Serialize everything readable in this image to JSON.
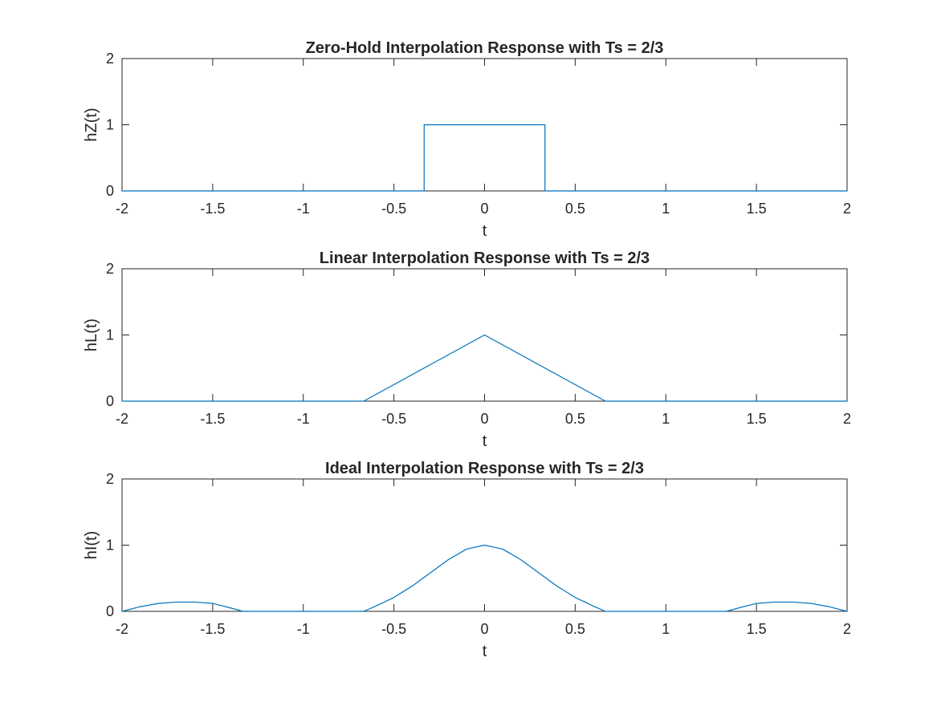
{
  "figure": {
    "background": "#ffffff",
    "axes_color": "#262626",
    "line_color": "#0072bd"
  },
  "chart_data": [
    {
      "type": "line",
      "title": "Zero-Hold Interpolation Response with Ts = 2/3",
      "xlabel": "t",
      "ylabel": "hZ(t)",
      "xlim": [
        -2,
        2
      ],
      "ylim": [
        0,
        2
      ],
      "xticks": [
        -2,
        -1.5,
        -1,
        -0.5,
        0,
        0.5,
        1,
        1.5,
        2
      ],
      "xticklabels": [
        "-2",
        "-1.5",
        "-1",
        "-0.5",
        "0",
        "0.5",
        "1",
        "1.5",
        "2"
      ],
      "yticks": [
        0,
        1,
        2
      ],
      "yticklabels": [
        "0",
        "1",
        "2"
      ],
      "grid": false,
      "series": [
        {
          "x": [
            -2,
            -0.3333,
            -0.3333,
            0.3333,
            0.3333,
            2
          ],
          "y": [
            0,
            0,
            1,
            1,
            0,
            0
          ]
        }
      ]
    },
    {
      "type": "line",
      "title": "Linear Interpolation Response with Ts = 2/3",
      "xlabel": "t",
      "ylabel": "hL(t)",
      "xlim": [
        -2,
        2
      ],
      "ylim": [
        0,
        2
      ],
      "xticks": [
        -2,
        -1.5,
        -1,
        -0.5,
        0,
        0.5,
        1,
        1.5,
        2
      ],
      "xticklabels": [
        "-2",
        "-1.5",
        "-1",
        "-0.5",
        "0",
        "0.5",
        "1",
        "1.5",
        "2"
      ],
      "yticks": [
        0,
        1,
        2
      ],
      "yticklabels": [
        "0",
        "1",
        "2"
      ],
      "grid": false,
      "series": [
        {
          "x": [
            -2,
            -0.6667,
            0,
            0.6667,
            2
          ],
          "y": [
            0,
            0,
            1,
            0,
            0
          ]
        }
      ]
    },
    {
      "type": "line",
      "title": "Ideal Interpolation Response with Ts = 2/3",
      "xlabel": "t",
      "ylabel": "hI(t)",
      "xlim": [
        -2,
        2
      ],
      "ylim": [
        0,
        2
      ],
      "xticks": [
        -2,
        -1.5,
        -1,
        -0.5,
        0,
        0.5,
        1,
        1.5,
        2
      ],
      "xticklabels": [
        "-2",
        "-1.5",
        "-1",
        "-0.5",
        "0",
        "0.5",
        "1",
        "1.5",
        "2"
      ],
      "yticks": [
        0,
        1,
        2
      ],
      "yticklabels": [
        "0",
        "1",
        "2"
      ],
      "grid": false,
      "series": [
        {
          "x": [
            -2,
            -1.9,
            -1.8,
            -1.7,
            -1.65,
            -1.6,
            -1.5,
            -1.4,
            -1.3333,
            -1.2,
            -1.0,
            -0.8,
            -0.6667,
            -0.6,
            -0.5,
            -0.4,
            -0.3,
            -0.2,
            -0.1,
            0,
            0.1,
            0.2,
            0.3,
            0.4,
            0.5,
            0.6,
            0.6667,
            0.8,
            1.0,
            1.2,
            1.3333,
            1.4,
            1.5,
            1.6,
            1.65,
            1.7,
            1.8,
            1.9,
            2
          ],
          "y": [
            0,
            0.07,
            0.12,
            0.14,
            0.14,
            0.14,
            0.12,
            0.05,
            0,
            0,
            0,
            0,
            0,
            0.08,
            0.21,
            0.38,
            0.58,
            0.78,
            0.94,
            1,
            0.94,
            0.78,
            0.58,
            0.38,
            0.21,
            0.08,
            0,
            0,
            0,
            0,
            0,
            0.05,
            0.12,
            0.14,
            0.14,
            0.14,
            0.12,
            0.07,
            0
          ]
        }
      ]
    }
  ]
}
